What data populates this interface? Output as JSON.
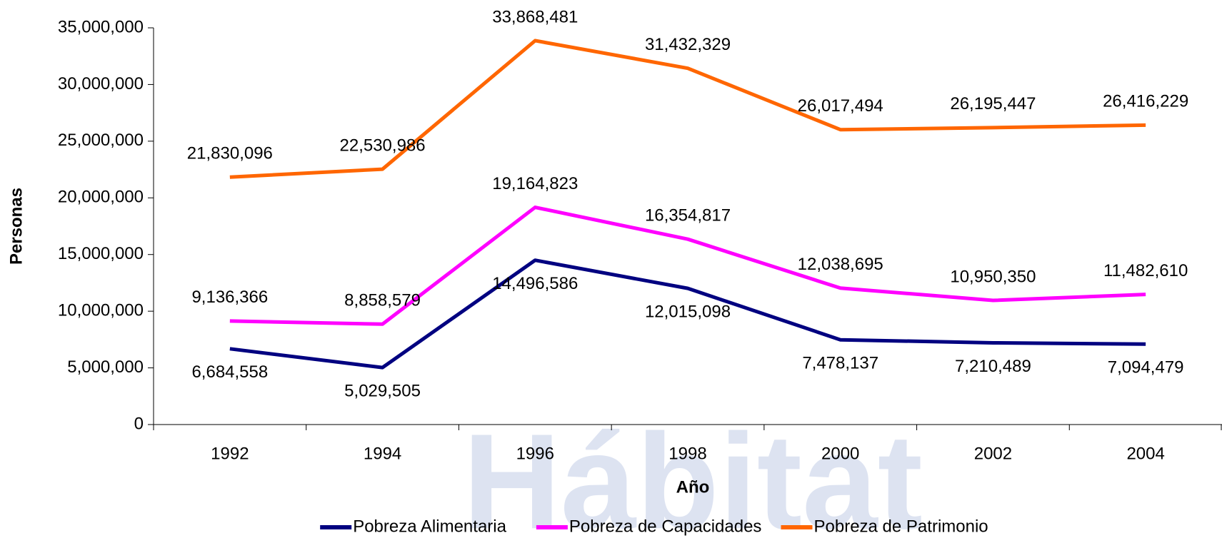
{
  "chart_data": {
    "type": "line",
    "watermark": "Hábitat",
    "x_label": "Año",
    "y_label": "Personas",
    "categories": [
      "1992",
      "1994",
      "1996",
      "1998",
      "2000",
      "2002",
      "2004"
    ],
    "series": [
      {
        "name": "Pobreza Alimentaria",
        "color": "#000080",
        "values": [
          6684558,
          5029505,
          14496586,
          12015098,
          7478137,
          7210489,
          7094479
        ],
        "value_labels": [
          "6,684,558",
          "5,029,505",
          "14,496,586",
          "12,015,098",
          "7,478,137",
          "7,210,489",
          "7,094,479"
        ]
      },
      {
        "name": "Pobreza de Capacidades",
        "color": "#ff00ff",
        "values": [
          9136366,
          8858579,
          19164823,
          16354817,
          12038695,
          10950350,
          11482610
        ],
        "value_labels": [
          "9,136,366",
          "8,858,579",
          "19,164,823",
          "16,354,817",
          "12,038,695",
          "10,950,350",
          "11,482,610"
        ]
      },
      {
        "name": "Pobreza de Patrimonio",
        "color": "#ff6600",
        "values": [
          21830096,
          22530986,
          33868481,
          31432329,
          26017494,
          26195447,
          26416229
        ],
        "value_labels": [
          "21,830,096",
          "22,530,986",
          "33,868,481",
          "31,432,329",
          "26,017,494",
          "26,195,447",
          "26,416,229"
        ]
      }
    ],
    "ylim": [
      0,
      35000000
    ],
    "yticks": [
      0,
      {
        "value": 5000000,
        "label": "5,000,000"
      },
      {
        "value": 10000000,
        "label": "10,000,000"
      },
      {
        "value": 15000000,
        "label": "15,000,000"
      },
      {
        "value": 20000000,
        "label": "20,000,000"
      },
      {
        "value": 25000000,
        "label": "25,000,000"
      },
      {
        "value": 30000000,
        "label": "30,000,000"
      },
      {
        "value": 35000000,
        "label": "35,000,000"
      }
    ],
    "legend": "bottom"
  }
}
